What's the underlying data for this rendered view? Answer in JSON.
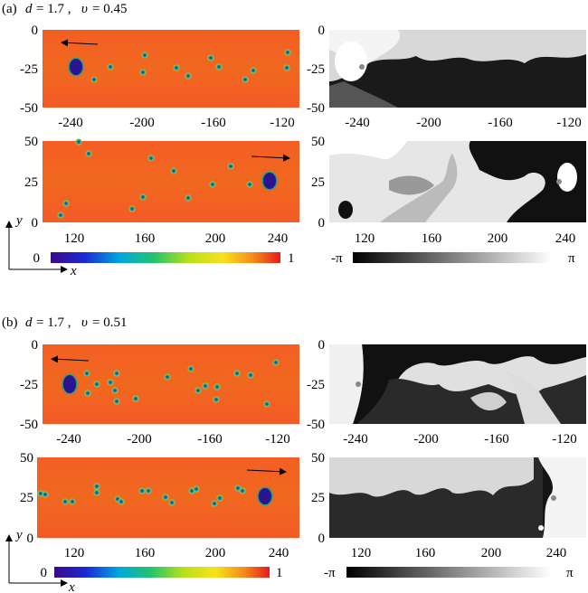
{
  "panels": [
    {
      "label": "(a)",
      "d_label": "d",
      "d_value": "= 1.7 ,",
      "v_label": "υ",
      "v_value": "= 0.45",
      "top_row": {
        "x_ticks": [
          "-240",
          "-200",
          "-160",
          "-120"
        ],
        "y_ticks": [
          "0",
          "-25",
          "-50"
        ]
      },
      "bottom_row": {
        "x_ticks": [
          "120",
          "160",
          "200",
          "240"
        ],
        "y_ticks": [
          "50",
          "25",
          "0"
        ]
      },
      "amplitude_colorbar": {
        "min": "0",
        "max": "1"
      },
      "phase_colorbar": {
        "min": "-π",
        "max": "π"
      },
      "axis_x": "x",
      "axis_y": "y"
    },
    {
      "label": "(b)",
      "d_label": "d",
      "d_value": "= 1.7 ,",
      "v_label": "υ",
      "v_value": "= 0.51",
      "top_row": {
        "x_ticks": [
          "-240",
          "-200",
          "-160",
          "-120"
        ],
        "y_ticks": [
          "0",
          "-25",
          "-50"
        ]
      },
      "bottom_row": {
        "x_ticks": [
          "120",
          "160",
          "200",
          "240"
        ],
        "y_ticks": [
          "50",
          "25",
          "0"
        ]
      },
      "amplitude_colorbar": {
        "min": "0",
        "max": "1"
      },
      "phase_colorbar": {
        "min": "-π",
        "max": "π"
      },
      "axis_x": "x",
      "axis_y": "y"
    }
  ],
  "colors": {
    "field_background": "#f25a23",
    "defect_core": "#2a1a8c",
    "defect_ring": "#1ea86a",
    "arrow": "#000000"
  }
}
